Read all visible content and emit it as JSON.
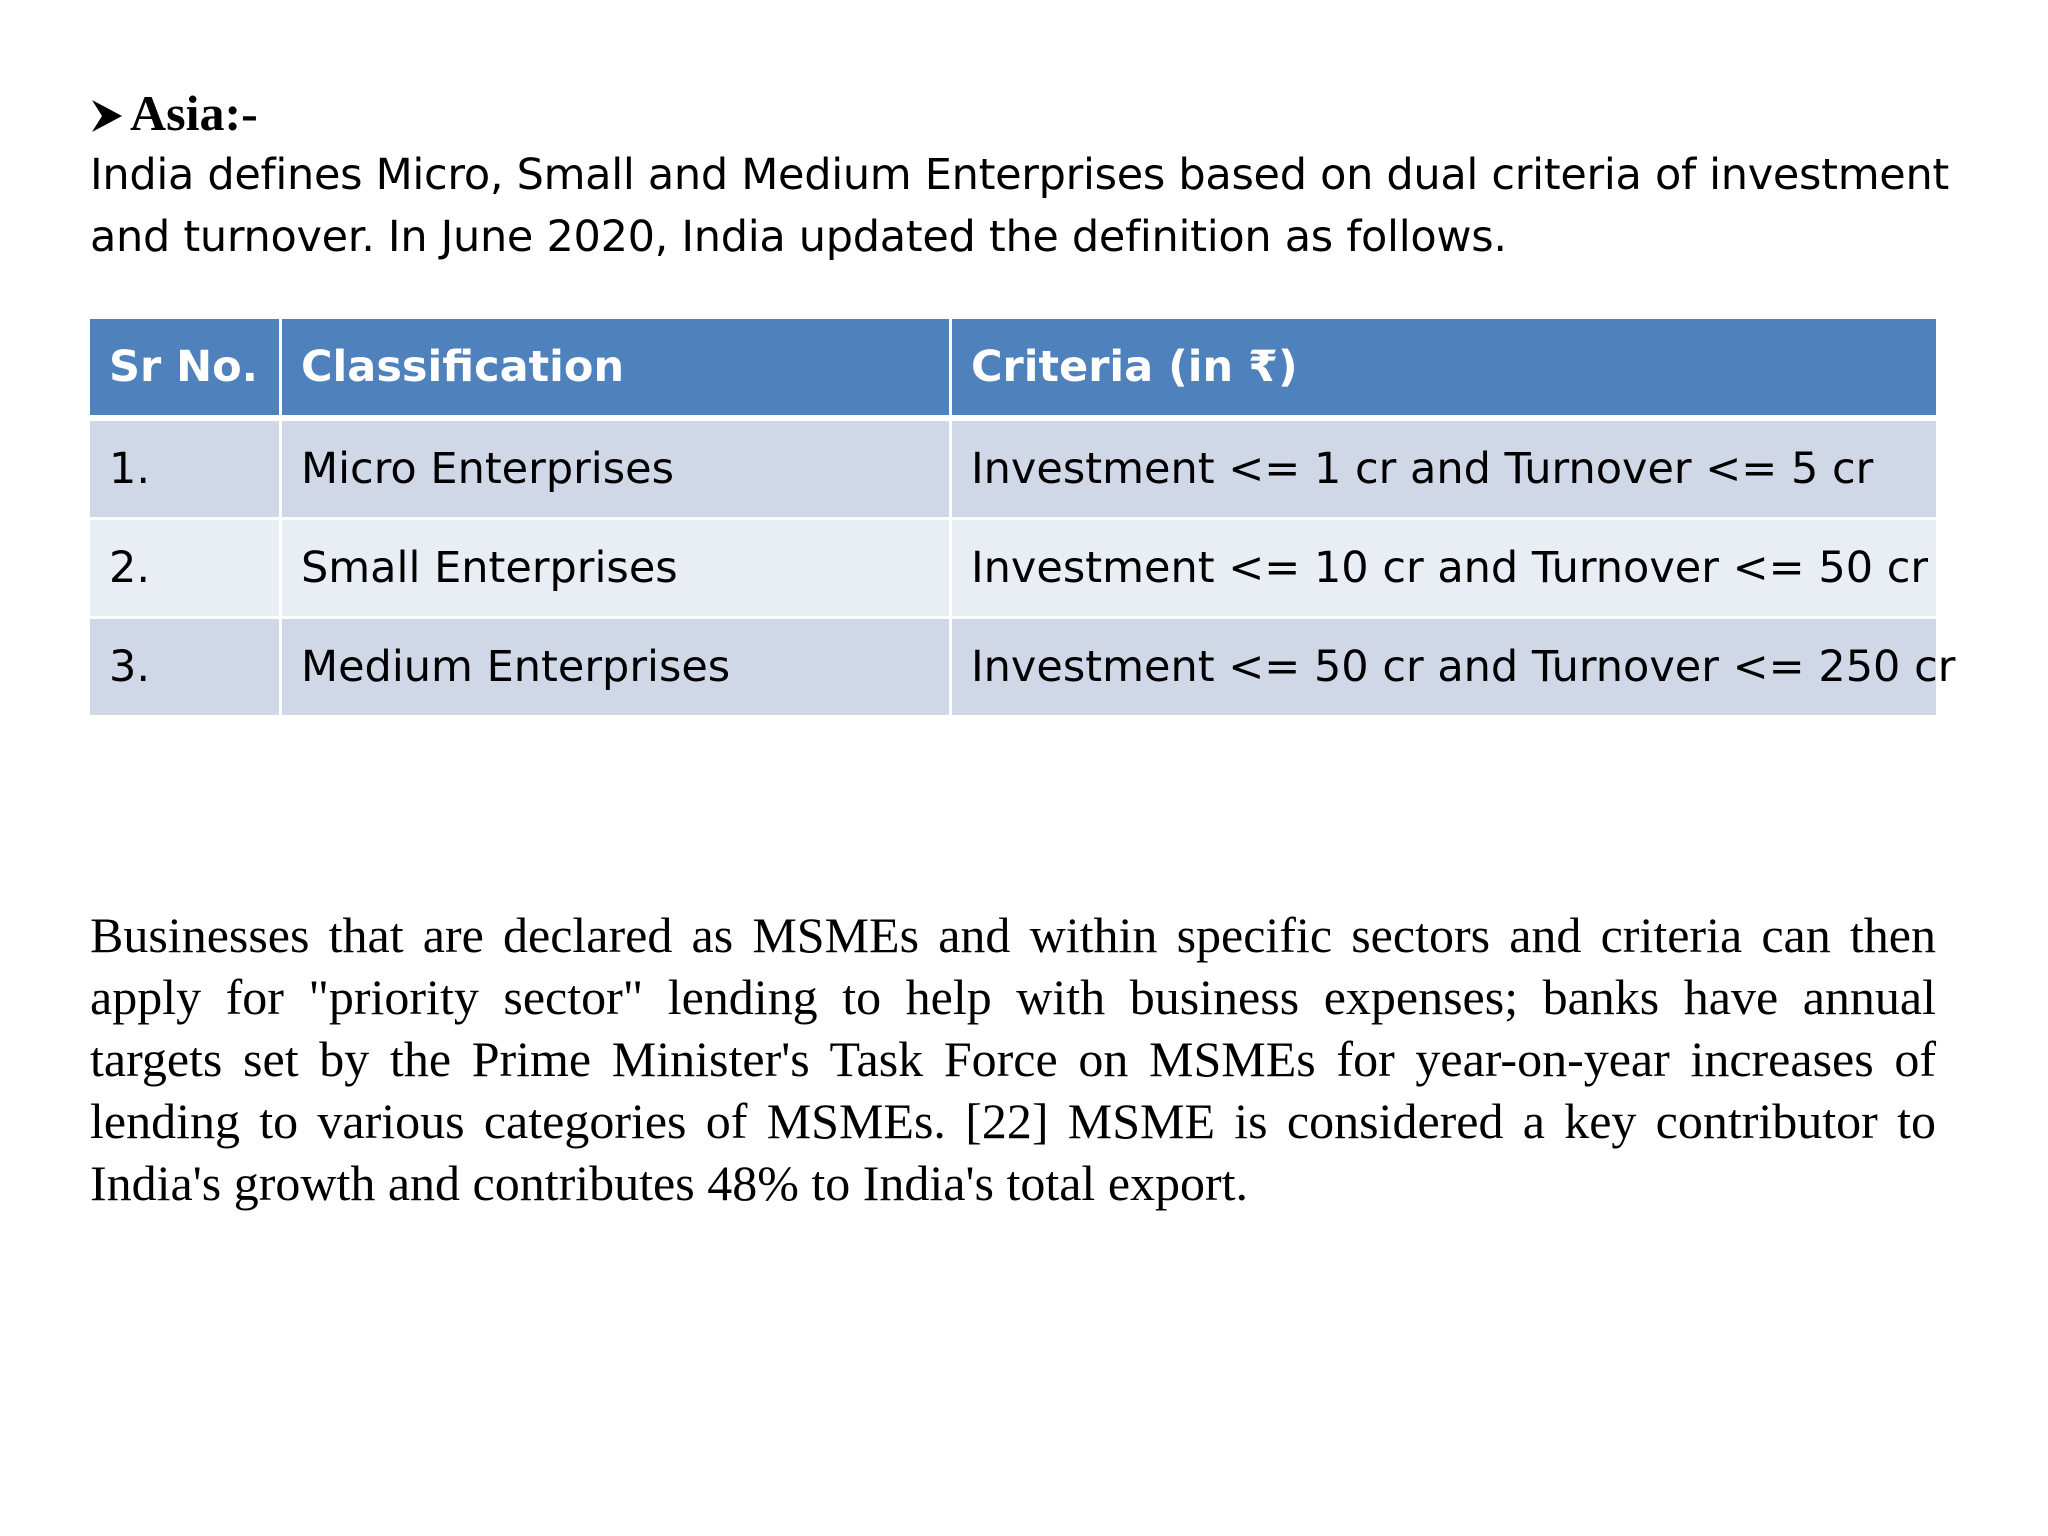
{
  "heading": {
    "bullet_icon": "arrow-bullet-icon",
    "text": "Asia:-"
  },
  "intro": {
    "line1": "India defines Micro, Small and Medium Enterprises based on dual criteria of investment",
    "line2": "and turnover. In June 2020, India updated the definition as follows."
  },
  "table": {
    "headers": [
      "Sr No.",
      "Classification",
      "Criteria (in ₹)"
    ],
    "rows": [
      [
        "1.",
        "Micro Enterprises",
        "Investment <= 1 cr and Turnover <= 5 cr"
      ],
      [
        "2.",
        "Small Enterprises",
        "Investment <= 10 cr and Turnover <= 50 cr"
      ],
      [
        "3.",
        "Medium Enterprises",
        "Investment <= 50 cr and Turnover <= 250 cr"
      ]
    ],
    "colors": {
      "header_bg": "#4f81bd",
      "row_odd_bg": "#d0d8e8",
      "row_even_bg": "#e9edf4"
    }
  },
  "paragraph": "Businesses that are declared as MSMEs and within specific sectors and criteria can then apply for \"priority sector\" lending to help with business expenses; banks have annual targets set by the Prime Minister's Task Force on MSMEs for year-on-year increases of lending to various categories of MSMEs. [22] MSME is considered a key contributor to India's growth and contributes 48% to India's total export."
}
